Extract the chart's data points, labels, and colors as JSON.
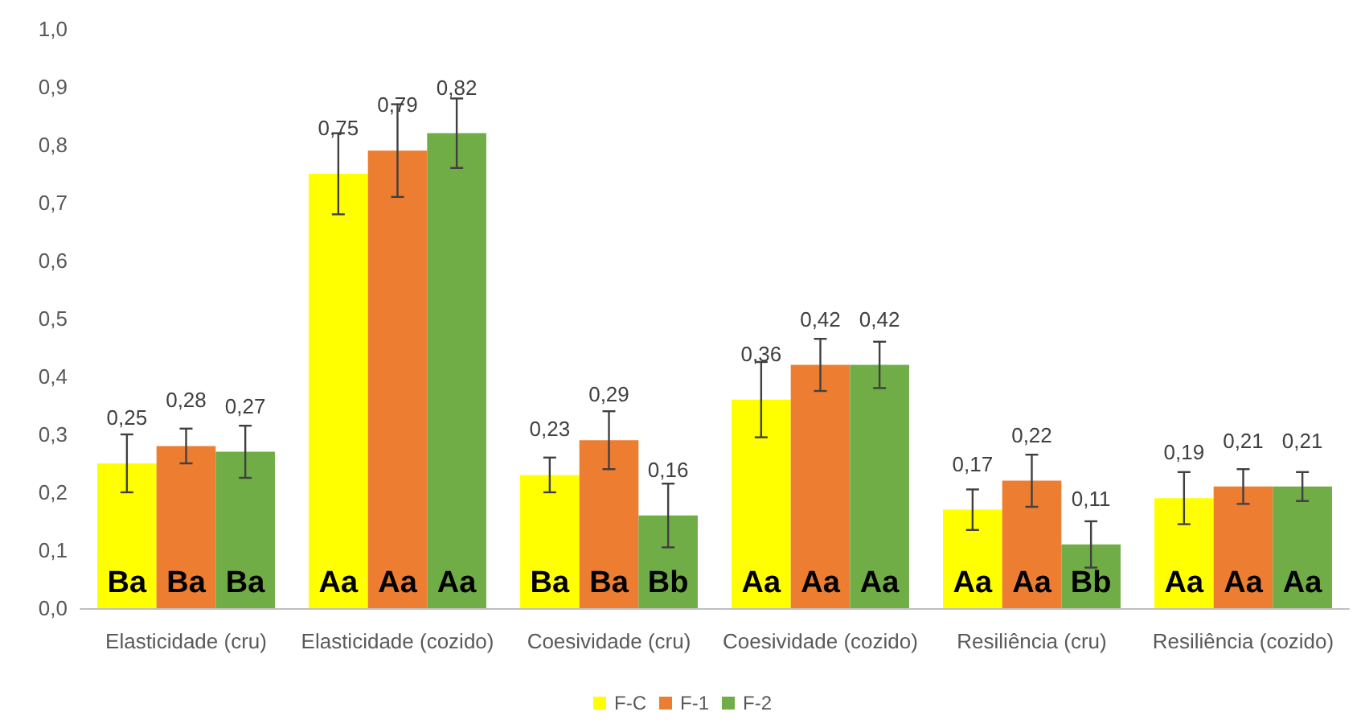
{
  "chart_data": {
    "type": "bar",
    "categories": [
      "Elasticidade (cru)",
      "Elasticidade (cozido)",
      "Coesividade (cru)",
      "Coesividade (cozido)",
      "Resiliência (cru)",
      "Resiliência (cozido)"
    ],
    "series": [
      {
        "name": "F-C",
        "color": "#ffff00",
        "values": [
          0.25,
          0.75,
          0.23,
          0.36,
          0.17,
          0.19
        ],
        "errors": [
          0.05,
          0.07,
          0.03,
          0.065,
          0.035,
          0.045
        ],
        "value_labels": [
          "0,25",
          "0,75",
          "0,23",
          "0,36",
          "0,17",
          "0,19"
        ]
      },
      {
        "name": "F-1",
        "color": "#ed7d31",
        "values": [
          0.28,
          0.79,
          0.29,
          0.42,
          0.22,
          0.21
        ],
        "errors": [
          0.03,
          0.08,
          0.05,
          0.045,
          0.045,
          0.03
        ],
        "value_labels": [
          "0,28",
          "0,79",
          "0,29",
          "0,42",
          "0,22",
          "0,21"
        ]
      },
      {
        "name": "F-2",
        "color": "#70ad47",
        "values": [
          0.27,
          0.82,
          0.16,
          0.42,
          0.11,
          0.21
        ],
        "errors": [
          0.045,
          0.06,
          0.055,
          0.04,
          0.04,
          0.025
        ],
        "value_labels": [
          "0,27",
          "0,82",
          "0,16",
          "0,42",
          "0,11",
          "0,21"
        ]
      }
    ],
    "ylim": [
      0,
      1
    ],
    "yticks": [
      {
        "value": 0,
        "label": "0,0"
      },
      {
        "value": 0.1,
        "label": "0,1"
      },
      {
        "value": 0.2,
        "label": "0,2"
      },
      {
        "value": 0.3,
        "label": "0,3"
      },
      {
        "value": 0.4,
        "label": "0,4"
      },
      {
        "value": 0.5,
        "label": "0,5"
      },
      {
        "value": 0.6,
        "label": "0,6"
      },
      {
        "value": 0.7,
        "label": "0,7"
      },
      {
        "value": 0.8,
        "label": "0,8"
      },
      {
        "value": 0.9,
        "label": "0,9"
      },
      {
        "value": 1,
        "label": "1,0"
      }
    ],
    "grid": false,
    "legend": "bottom",
    "annotations": [
      "Ba",
      "Ba",
      "Ba",
      "Aa",
      "Aa",
      "Aa",
      "Ba",
      "Ba",
      "Bb",
      "Aa",
      "Aa",
      "Aa",
      "Aa",
      "Aa",
      "Bb",
      "Aa",
      "Aa",
      "Aa"
    ]
  }
}
